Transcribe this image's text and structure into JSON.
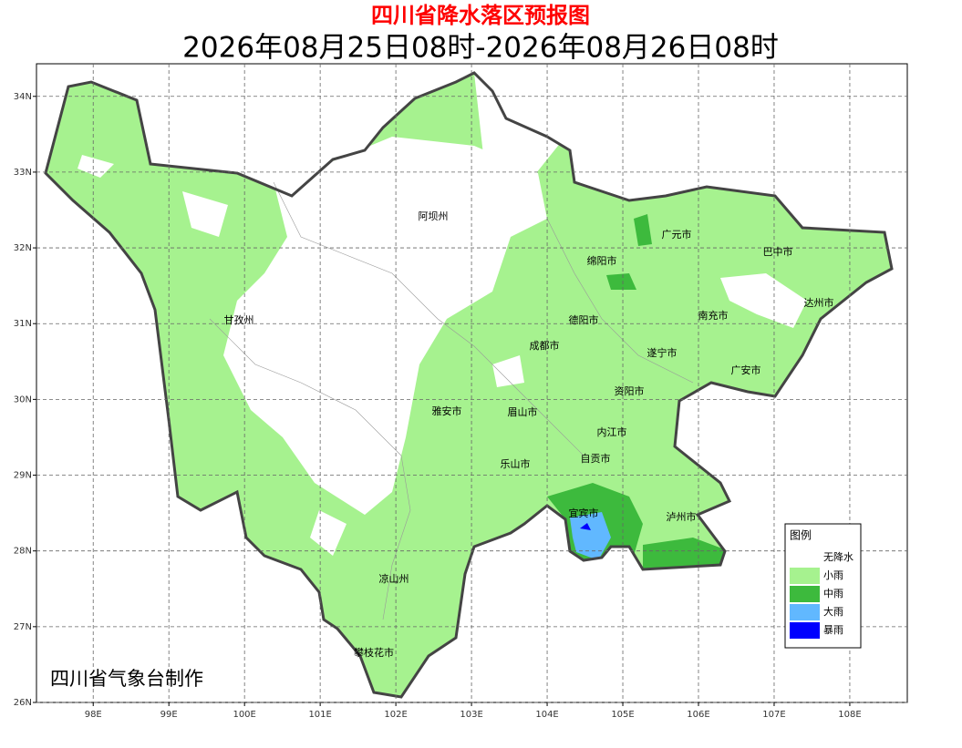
{
  "title": "四川省降水落区预报图",
  "subtitle": "2026年08月25日08时-2026年08月26日08时",
  "map": {
    "xlim": [
      97.25,
      108.76
    ],
    "ylim": [
      26,
      34.43
    ],
    "grid": true,
    "xticks": [
      {
        "value": 98,
        "label": "98E"
      },
      {
        "value": 99,
        "label": "99E"
      },
      {
        "value": 100,
        "label": "100E"
      },
      {
        "value": 101,
        "label": "101E"
      },
      {
        "value": 102,
        "label": "102E"
      },
      {
        "value": 103,
        "label": "103E"
      },
      {
        "value": 104,
        "label": "104E"
      },
      {
        "value": 105,
        "label": "105E"
      },
      {
        "value": 106,
        "label": "106E"
      },
      {
        "value": 107,
        "label": "107E"
      },
      {
        "value": 108,
        "label": "108E"
      }
    ],
    "yticks": [
      {
        "value": 26,
        "label": "26N"
      },
      {
        "value": 27,
        "label": "27N"
      },
      {
        "value": 28,
        "label": "28N"
      },
      {
        "value": 29,
        "label": "29N"
      },
      {
        "value": 30,
        "label": "30N"
      },
      {
        "value": 31,
        "label": "31N"
      },
      {
        "value": 32,
        "label": "32N"
      },
      {
        "value": 33,
        "label": "33N"
      },
      {
        "value": 34,
        "label": "34N"
      }
    ]
  },
  "cities": [
    "阿坝州",
    "广元市",
    "巴中市",
    "绵阳市",
    "达州市",
    "甘孜州",
    "德阳市",
    "南充市",
    "成都市",
    "遂宁市",
    "广安市",
    "资阳市",
    "雅安市",
    "眉山市",
    "内江市",
    "自贡市",
    "乐山市",
    "宜宾市",
    "泸州市",
    "凉山州",
    "攀枝花市"
  ],
  "legend": {
    "title": "图例",
    "items": [
      {
        "label": "无降水",
        "color": "#ffffff"
      },
      {
        "label": "小雨",
        "color": "#a6f28f"
      },
      {
        "label": "中雨",
        "color": "#3dba3d"
      },
      {
        "label": "大雨",
        "color": "#61b8ff"
      },
      {
        "label": "暴雨",
        "color": "#0000fe"
      }
    ]
  },
  "credit": "四川省气象台制作"
}
